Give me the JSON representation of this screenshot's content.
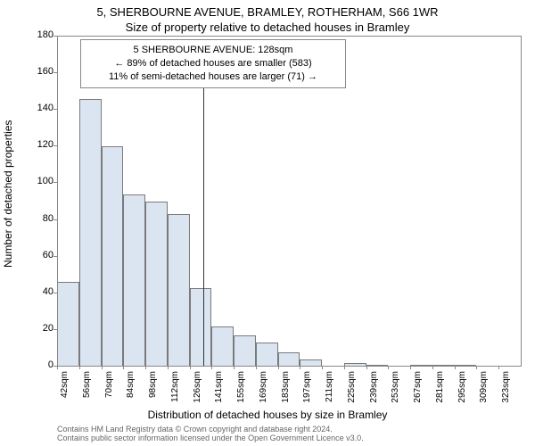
{
  "title_line1": "5, SHERBOURNE AVENUE, BRAMLEY, ROTHERHAM, S66 1WR",
  "title_line2": "Size of property relative to detached houses in Bramley",
  "info_box": {
    "line1": "5 SHERBOURNE AVENUE: 128sqm",
    "line2": "← 89% of detached houses are smaller (583)",
    "line3": "11% of semi-detached houses are larger (71) →"
  },
  "y_axis": {
    "label": "Number of detached properties",
    "ticks": [
      0,
      20,
      40,
      60,
      80,
      100,
      120,
      140,
      160,
      180
    ],
    "max": 180
  },
  "x_axis": {
    "label": "Distribution of detached houses by size in Bramley",
    "tick_labels": [
      "42sqm",
      "56sqm",
      "70sqm",
      "84sqm",
      "98sqm",
      "112sqm",
      "126sqm",
      "141sqm",
      "155sqm",
      "169sqm",
      "183sqm",
      "197sqm",
      "211sqm",
      "225sqm",
      "239sqm",
      "253sqm",
      "267sqm",
      "281sqm",
      "295sqm",
      "309sqm",
      "323sqm"
    ]
  },
  "chart": {
    "type": "histogram",
    "bar_fill": "#dbe5f1",
    "bar_stroke": "#7a7a7a",
    "background": "#ffffff",
    "axis_color": "#888888",
    "values": [
      46,
      146,
      120,
      94,
      90,
      83,
      43,
      22,
      17,
      13,
      8,
      4,
      0,
      2,
      1,
      0,
      1,
      1,
      1,
      0,
      0
    ],
    "marker_value": 128
  },
  "footer": "Contains HM Land Registry data © Crown copyright and database right 2024.\nContains public sector information licensed under the Open Government Licence v3.0."
}
